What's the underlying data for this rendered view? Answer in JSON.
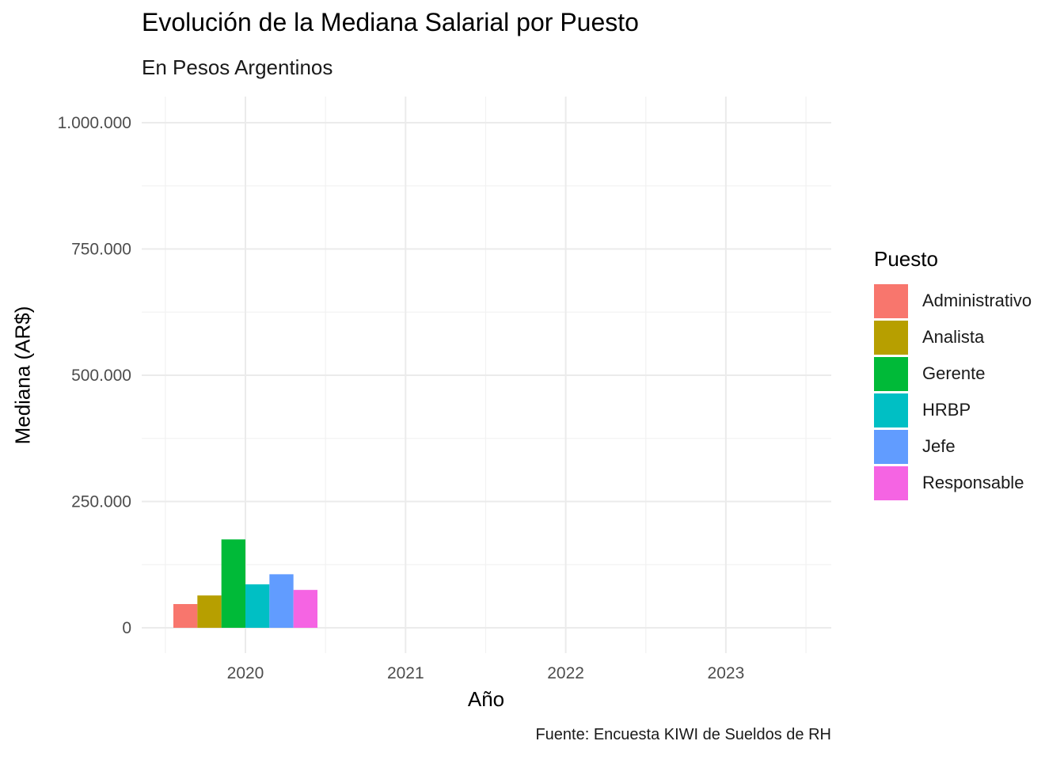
{
  "chart_data": {
    "type": "bar",
    "title": "Evolución de la Mediana Salarial por Puesto",
    "subtitle": "En Pesos Argentinos",
    "xlabel": "Año",
    "ylabel": "Mediana (AR$)",
    "caption": "Fuente: Encuesta KIWI de Sueldos de RH",
    "categories": [
      "2020",
      "2021",
      "2022",
      "2023"
    ],
    "ylim": [
      0,
      1000000
    ],
    "yticks": [
      0,
      250000,
      500000,
      750000,
      1000000
    ],
    "ytick_labels": [
      "0",
      "250.000",
      "500.000",
      "750.000",
      "1.000.000"
    ],
    "grid": true,
    "legend_title": "Puesto",
    "legend_position": "right",
    "series": [
      {
        "name": "Administrativo",
        "color": "#F8766D",
        "values": [
          47000,
          null,
          null,
          null
        ]
      },
      {
        "name": "Analista",
        "color": "#B79F00",
        "values": [
          64000,
          null,
          null,
          null
        ]
      },
      {
        "name": "Gerente",
        "color": "#00BA38",
        "values": [
          175000,
          null,
          null,
          null
        ]
      },
      {
        "name": "HRBP",
        "color": "#00BFC4",
        "values": [
          86000,
          null,
          null,
          null
        ]
      },
      {
        "name": "Jefe",
        "color": "#619CFF",
        "values": [
          106000,
          null,
          null,
          null
        ]
      },
      {
        "name": "Responsable",
        "color": "#F564E3",
        "values": [
          75000,
          null,
          null,
          null
        ]
      }
    ]
  }
}
